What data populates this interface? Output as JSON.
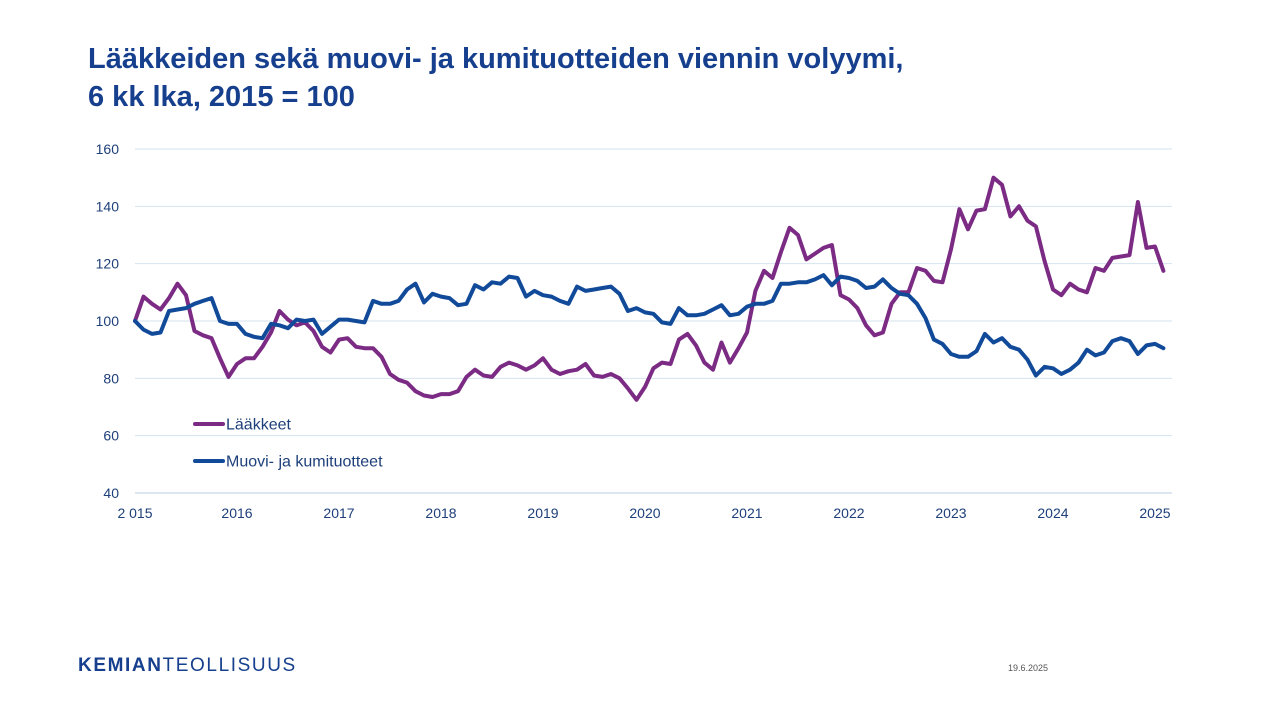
{
  "slide": {
    "title_line1": "Lääkkeiden sekä muovi- ja kumituotteiden viennin volyymi,",
    "title_line2": "6 kk lka, 2015 = 100",
    "logo_part1": "KEMIAN",
    "logo_part2": "TEOLLISUUS",
    "date": "19.6.2025"
  },
  "colors": {
    "title": "#163f8e",
    "laakkeet": "#7b2b83",
    "muovi": "#124a9a",
    "grid": "#d4e3ee",
    "axis": "#c8d8e6"
  },
  "chart_data": {
    "type": "line",
    "title": "",
    "xlabel": "",
    "ylabel": "",
    "ylim": [
      40,
      160
    ],
    "yticks": [
      40,
      60,
      80,
      100,
      120,
      140,
      160
    ],
    "xticks": [
      {
        "x": 2015.0,
        "label": "2 015"
      },
      {
        "x": 2016.0,
        "label": "2016"
      },
      {
        "x": 2017.0,
        "label": "2017"
      },
      {
        "x": 2018.0,
        "label": "2018"
      },
      {
        "x": 2019.0,
        "label": "2019"
      },
      {
        "x": 2020.0,
        "label": "2020"
      },
      {
        "x": 2021.0,
        "label": "2021"
      },
      {
        "x": 2022.0,
        "label": "2022"
      },
      {
        "x": 2023.0,
        "label": "2023"
      },
      {
        "x": 2024.0,
        "label": "2024"
      },
      {
        "x": 2025.0,
        "label": "2025"
      }
    ],
    "xlim": [
      2015.0,
      2025.167
    ],
    "grid": true,
    "legend_position": "lower-left",
    "series": [
      {
        "name": "Lääkkeet",
        "color": "#7b2b83",
        "points": [
          [
            2015.0,
            100
          ],
          [
            2015.083,
            108.5
          ],
          [
            2015.167,
            106
          ],
          [
            2015.25,
            104
          ],
          [
            2015.333,
            108
          ],
          [
            2015.417,
            113
          ],
          [
            2015.5,
            109
          ],
          [
            2015.583,
            96.5
          ],
          [
            2015.667,
            95
          ],
          [
            2015.75,
            94
          ],
          [
            2015.833,
            87
          ],
          [
            2015.917,
            80.5
          ],
          [
            2016.0,
            85
          ],
          [
            2016.083,
            87
          ],
          [
            2016.167,
            87
          ],
          [
            2016.25,
            91
          ],
          [
            2016.333,
            96
          ],
          [
            2016.417,
            103.5
          ],
          [
            2016.5,
            100.5
          ],
          [
            2016.583,
            98.5
          ],
          [
            2016.667,
            99.5
          ],
          [
            2016.75,
            96.5
          ],
          [
            2016.833,
            91
          ],
          [
            2016.917,
            89
          ],
          [
            2017.0,
            93.5
          ],
          [
            2017.083,
            94
          ],
          [
            2017.167,
            91
          ],
          [
            2017.25,
            90.5
          ],
          [
            2017.333,
            90.5
          ],
          [
            2017.417,
            87.5
          ],
          [
            2017.5,
            81.5
          ],
          [
            2017.583,
            79.5
          ],
          [
            2017.667,
            78.5
          ],
          [
            2017.75,
            75.5
          ],
          [
            2017.833,
            74
          ],
          [
            2017.917,
            73.5
          ],
          [
            2018.0,
            74.5
          ],
          [
            2018.083,
            74.5
          ],
          [
            2018.167,
            75.5
          ],
          [
            2018.25,
            80.5
          ],
          [
            2018.333,
            83
          ],
          [
            2018.417,
            81
          ],
          [
            2018.5,
            80.5
          ],
          [
            2018.583,
            84
          ],
          [
            2018.667,
            85.5
          ],
          [
            2018.75,
            84.5
          ],
          [
            2018.833,
            83
          ],
          [
            2018.917,
            84.5
          ],
          [
            2019.0,
            87
          ],
          [
            2019.083,
            83
          ],
          [
            2019.167,
            81.5
          ],
          [
            2019.25,
            82.5
          ],
          [
            2019.333,
            83
          ],
          [
            2019.417,
            85
          ],
          [
            2019.5,
            81
          ],
          [
            2019.583,
            80.5
          ],
          [
            2019.667,
            81.5
          ],
          [
            2019.75,
            80
          ],
          [
            2019.833,
            76.5
          ],
          [
            2019.917,
            72.5
          ],
          [
            2020.0,
            77
          ],
          [
            2020.083,
            83.5
          ],
          [
            2020.167,
            85.5
          ],
          [
            2020.25,
            85
          ],
          [
            2020.333,
            93.5
          ],
          [
            2020.417,
            95.5
          ],
          [
            2020.5,
            91.5
          ],
          [
            2020.583,
            85.5
          ],
          [
            2020.667,
            83
          ],
          [
            2020.75,
            92.5
          ],
          [
            2020.833,
            85.5
          ],
          [
            2020.917,
            90.5
          ],
          [
            2021.0,
            96
          ],
          [
            2021.083,
            110.5
          ],
          [
            2021.167,
            117.5
          ],
          [
            2021.25,
            115
          ],
          [
            2021.333,
            124
          ],
          [
            2021.417,
            132.5
          ],
          [
            2021.5,
            130
          ],
          [
            2021.583,
            121.5
          ],
          [
            2021.667,
            123.5
          ],
          [
            2021.75,
            125.5
          ],
          [
            2021.833,
            126.5
          ],
          [
            2021.917,
            109
          ],
          [
            2022.0,
            107.5
          ],
          [
            2022.083,
            104.5
          ],
          [
            2022.167,
            98.5
          ],
          [
            2022.25,
            95
          ],
          [
            2022.333,
            96
          ],
          [
            2022.417,
            106
          ],
          [
            2022.5,
            110
          ],
          [
            2022.583,
            110
          ],
          [
            2022.667,
            118.5
          ],
          [
            2022.75,
            117.5
          ],
          [
            2022.833,
            114
          ],
          [
            2022.917,
            113.5
          ],
          [
            2023.0,
            125
          ],
          [
            2023.083,
            139
          ],
          [
            2023.167,
            132
          ],
          [
            2023.25,
            138.5
          ],
          [
            2023.333,
            139
          ],
          [
            2023.417,
            150
          ],
          [
            2023.5,
            147.5
          ],
          [
            2023.583,
            136.5
          ],
          [
            2023.667,
            140
          ],
          [
            2023.75,
            135
          ],
          [
            2023.833,
            133
          ],
          [
            2023.917,
            121
          ],
          [
            2024.0,
            111
          ],
          [
            2024.083,
            109
          ],
          [
            2024.167,
            113
          ],
          [
            2024.25,
            111
          ],
          [
            2024.333,
            110
          ],
          [
            2024.417,
            118.5
          ],
          [
            2024.5,
            117.5
          ],
          [
            2024.583,
            122
          ],
          [
            2024.667,
            122.5
          ],
          [
            2024.75,
            123
          ],
          [
            2024.833,
            141.5
          ],
          [
            2024.917,
            125.5
          ],
          [
            2025.0,
            126
          ],
          [
            2025.083,
            117.5
          ]
        ]
      },
      {
        "name": "Muovi- ja kumituotteet",
        "color": "#124a9a",
        "points": [
          [
            2015.0,
            100
          ],
          [
            2015.083,
            97
          ],
          [
            2015.167,
            95.5
          ],
          [
            2015.25,
            96
          ],
          [
            2015.333,
            103.5
          ],
          [
            2015.417,
            104
          ],
          [
            2015.5,
            104.5
          ],
          [
            2015.583,
            106
          ],
          [
            2015.667,
            107
          ],
          [
            2015.75,
            108
          ],
          [
            2015.833,
            100
          ],
          [
            2015.917,
            99
          ],
          [
            2016.0,
            99
          ],
          [
            2016.083,
            95.5
          ],
          [
            2016.167,
            94.5
          ],
          [
            2016.25,
            94
          ],
          [
            2016.333,
            99
          ],
          [
            2016.417,
            98.5
          ],
          [
            2016.5,
            97.5
          ],
          [
            2016.583,
            100.5
          ],
          [
            2016.667,
            100
          ],
          [
            2016.75,
            100.5
          ],
          [
            2016.833,
            95.5
          ],
          [
            2016.917,
            98
          ],
          [
            2017.0,
            100.5
          ],
          [
            2017.083,
            100.5
          ],
          [
            2017.167,
            100
          ],
          [
            2017.25,
            99.5
          ],
          [
            2017.333,
            107
          ],
          [
            2017.417,
            106
          ],
          [
            2017.5,
            106
          ],
          [
            2017.583,
            107
          ],
          [
            2017.667,
            111
          ],
          [
            2017.75,
            113
          ],
          [
            2017.833,
            106.5
          ],
          [
            2017.917,
            109.5
          ],
          [
            2018.0,
            108.5
          ],
          [
            2018.083,
            108
          ],
          [
            2018.167,
            105.5
          ],
          [
            2018.25,
            106
          ],
          [
            2018.333,
            112.5
          ],
          [
            2018.417,
            111
          ],
          [
            2018.5,
            113.5
          ],
          [
            2018.583,
            113
          ],
          [
            2018.667,
            115.5
          ],
          [
            2018.75,
            115
          ],
          [
            2018.833,
            108.5
          ],
          [
            2018.917,
            110.5
          ],
          [
            2019.0,
            109
          ],
          [
            2019.083,
            108.5
          ],
          [
            2019.167,
            107
          ],
          [
            2019.25,
            106
          ],
          [
            2019.333,
            112
          ],
          [
            2019.417,
            110.5
          ],
          [
            2019.5,
            111
          ],
          [
            2019.583,
            111.5
          ],
          [
            2019.667,
            112
          ],
          [
            2019.75,
            109.5
          ],
          [
            2019.833,
            103.5
          ],
          [
            2019.917,
            104.5
          ],
          [
            2020.0,
            103
          ],
          [
            2020.083,
            102.5
          ],
          [
            2020.167,
            99.5
          ],
          [
            2020.25,
            99
          ],
          [
            2020.333,
            104.5
          ],
          [
            2020.417,
            102
          ],
          [
            2020.5,
            102
          ],
          [
            2020.583,
            102.5
          ],
          [
            2020.667,
            104
          ],
          [
            2020.75,
            105.5
          ],
          [
            2020.833,
            102
          ],
          [
            2020.917,
            102.5
          ],
          [
            2021.0,
            105
          ],
          [
            2021.083,
            106
          ],
          [
            2021.167,
            106
          ],
          [
            2021.25,
            107
          ],
          [
            2021.333,
            113
          ],
          [
            2021.417,
            113
          ],
          [
            2021.5,
            113.5
          ],
          [
            2021.583,
            113.5
          ],
          [
            2021.667,
            114.5
          ],
          [
            2021.75,
            116
          ],
          [
            2021.833,
            112.5
          ],
          [
            2021.917,
            115.5
          ],
          [
            2022.0,
            115
          ],
          [
            2022.083,
            114
          ],
          [
            2022.167,
            111.5
          ],
          [
            2022.25,
            112
          ],
          [
            2022.333,
            114.5
          ],
          [
            2022.417,
            111.5
          ],
          [
            2022.5,
            109.5
          ],
          [
            2022.583,
            109
          ],
          [
            2022.667,
            106
          ],
          [
            2022.75,
            101
          ],
          [
            2022.833,
            93.5
          ],
          [
            2022.917,
            92
          ],
          [
            2023.0,
            88.5
          ],
          [
            2023.083,
            87.5
          ],
          [
            2023.167,
            87.5
          ],
          [
            2023.25,
            89.5
          ],
          [
            2023.333,
            95.5
          ],
          [
            2023.417,
            92.5
          ],
          [
            2023.5,
            94
          ],
          [
            2023.583,
            91
          ],
          [
            2023.667,
            90
          ],
          [
            2023.75,
            86.5
          ],
          [
            2023.833,
            81
          ],
          [
            2023.917,
            84
          ],
          [
            2024.0,
            83.5
          ],
          [
            2024.083,
            81.5
          ],
          [
            2024.167,
            83
          ],
          [
            2024.25,
            85.5
          ],
          [
            2024.333,
            90
          ],
          [
            2024.417,
            88
          ],
          [
            2024.5,
            89
          ],
          [
            2024.583,
            93
          ],
          [
            2024.667,
            94
          ],
          [
            2024.75,
            93
          ],
          [
            2024.833,
            88.5
          ],
          [
            2024.917,
            91.5
          ],
          [
            2025.0,
            92
          ],
          [
            2025.083,
            90.5
          ]
        ]
      }
    ]
  }
}
